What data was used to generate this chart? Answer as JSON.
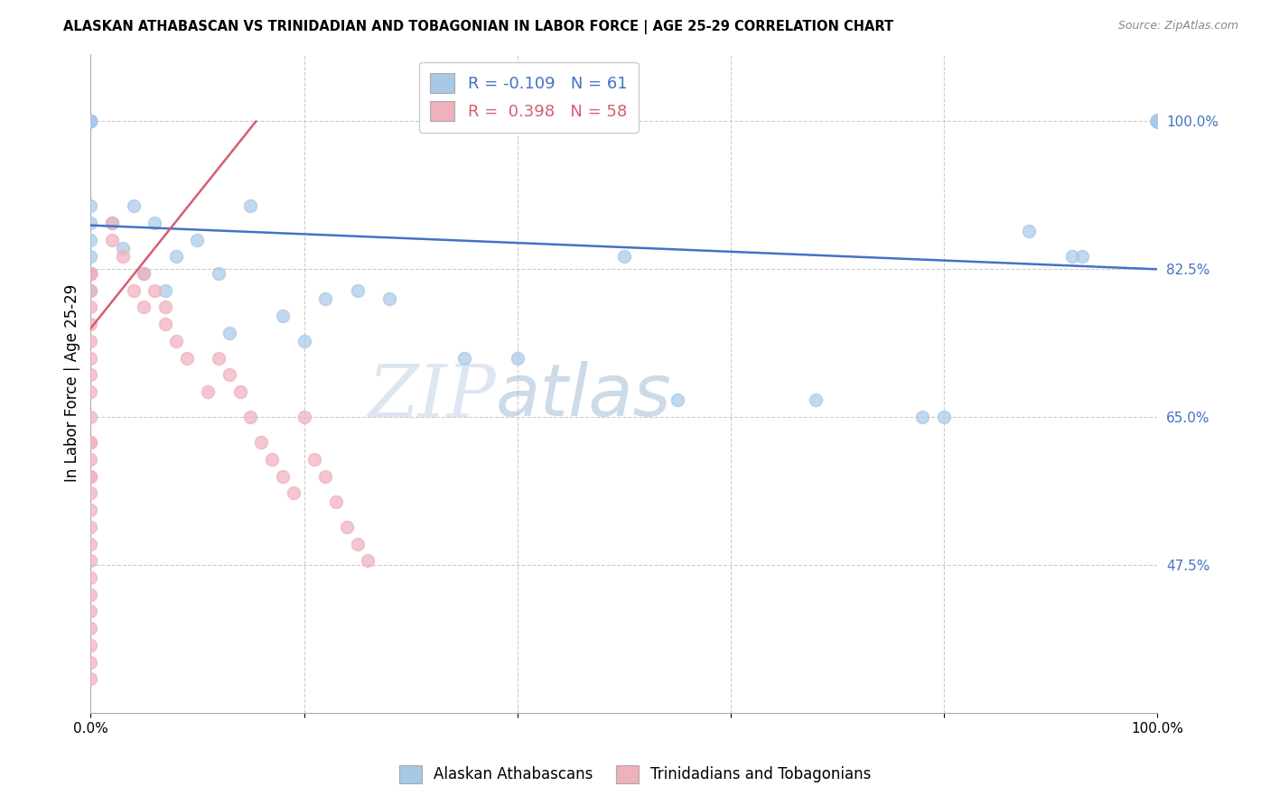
{
  "title": "ALASKAN ATHABASCAN VS TRINIDADIAN AND TOBAGONIAN IN LABOR FORCE | AGE 25-29 CORRELATION CHART",
  "source": "Source: ZipAtlas.com",
  "ylabel_ticks": [
    0.475,
    0.65,
    0.825,
    1.0
  ],
  "ylabel_labels": [
    "47.5%",
    "65.0%",
    "82.5%",
    "100.0%"
  ],
  "ylabel_label": "In Labor Force | Age 25-29",
  "legend_blue_r": "-0.109",
  "legend_blue_n": "61",
  "legend_pink_r": "0.398",
  "legend_pink_n": "58",
  "legend_blue_label": "Alaskan Athabascans",
  "legend_pink_label": "Trinidadians and Tobagonians",
  "blue_color": "#a8c8e8",
  "pink_color": "#f0b0bc",
  "blue_line_color": "#4472c4",
  "pink_line_color": "#d06070",
  "background_color": "#ffffff",
  "watermark_zip": "ZIP",
  "watermark_atlas": "atlas",
  "blue_x": [
    0.0,
    0.0,
    0.0,
    0.0,
    0.0,
    0.0,
    0.0,
    0.0,
    0.0,
    0.0,
    0.0,
    0.02,
    0.03,
    0.04,
    0.05,
    0.06,
    0.07,
    0.08,
    0.1,
    0.12,
    0.13,
    0.15,
    0.18,
    0.2,
    0.22,
    0.25,
    0.28,
    0.35,
    0.4,
    0.5,
    0.55,
    0.68,
    0.78,
    0.8,
    0.88,
    0.92,
    0.93,
    1.0,
    1.0,
    1.0,
    1.0,
    1.0,
    1.0,
    1.0,
    1.0,
    1.0,
    1.0,
    1.0,
    1.0,
    1.0,
    1.0,
    1.0,
    1.0,
    1.0,
    1.0,
    1.0,
    1.0,
    1.0,
    1.0,
    1.0,
    1.0,
    1.0
  ],
  "blue_y": [
    1.0,
    1.0,
    1.0,
    1.0,
    1.0,
    0.9,
    0.88,
    0.86,
    0.84,
    0.82,
    0.8,
    0.88,
    0.85,
    0.9,
    0.82,
    0.88,
    0.8,
    0.84,
    0.86,
    0.82,
    0.75,
    0.9,
    0.77,
    0.74,
    0.79,
    0.8,
    0.79,
    0.72,
    0.72,
    0.84,
    0.67,
    0.67,
    0.65,
    0.65,
    0.87,
    0.84,
    0.84,
    1.0,
    1.0,
    1.0,
    1.0,
    1.0,
    1.0,
    1.0,
    1.0,
    1.0,
    1.0,
    1.0,
    1.0,
    1.0,
    1.0,
    1.0,
    1.0,
    1.0,
    1.0,
    1.0,
    1.0,
    1.0,
    1.0,
    1.0,
    1.0,
    1.0
  ],
  "pink_x": [
    0.0,
    0.0,
    0.0,
    0.0,
    0.0,
    0.0,
    0.0,
    0.0,
    0.0,
    0.0,
    0.0,
    0.0,
    0.0,
    0.0,
    0.0,
    0.0,
    0.0,
    0.0,
    0.0,
    0.0,
    0.0,
    0.0,
    0.0,
    0.0,
    0.0,
    0.0,
    0.0,
    0.0,
    0.0,
    0.0,
    0.0,
    0.02,
    0.02,
    0.03,
    0.04,
    0.05,
    0.05,
    0.06,
    0.07,
    0.07,
    0.08,
    0.09,
    0.11,
    0.12,
    0.13,
    0.14,
    0.15,
    0.16,
    0.17,
    0.18,
    0.19,
    0.2,
    0.21,
    0.22,
    0.23,
    0.24,
    0.25,
    0.26
  ],
  "pink_y": [
    0.82,
    0.82,
    0.82,
    0.82,
    0.82,
    0.82,
    0.8,
    0.78,
    0.76,
    0.74,
    0.72,
    0.7,
    0.68,
    0.65,
    0.62,
    0.6,
    0.58,
    0.56,
    0.54,
    0.52,
    0.5,
    0.48,
    0.46,
    0.44,
    0.42,
    0.4,
    0.38,
    0.36,
    0.34,
    0.62,
    0.58,
    0.88,
    0.86,
    0.84,
    0.8,
    0.82,
    0.78,
    0.8,
    0.78,
    0.76,
    0.74,
    0.72,
    0.68,
    0.72,
    0.7,
    0.68,
    0.65,
    0.62,
    0.6,
    0.58,
    0.56,
    0.65,
    0.6,
    0.58,
    0.55,
    0.52,
    0.5,
    0.48
  ],
  "xlim": [
    0.0,
    1.0
  ],
  "ylim": [
    0.3,
    1.08
  ],
  "blue_trend_x": [
    0.0,
    1.0
  ],
  "blue_trend_y": [
    0.877,
    0.825
  ],
  "pink_trend_x": [
    0.0,
    0.155
  ],
  "pink_trend_y": [
    0.755,
    1.0
  ]
}
